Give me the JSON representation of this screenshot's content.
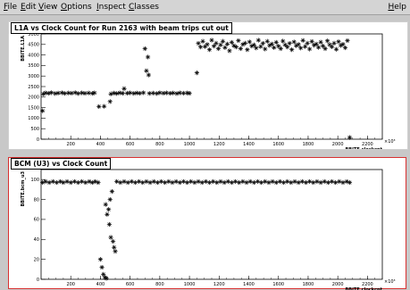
{
  "menubar": {
    "items": [
      {
        "label": "File",
        "ul": "F",
        "rest": "ile"
      },
      {
        "label": "Edit",
        "ul": "E",
        "rest": "dit"
      },
      {
        "label": "View",
        "ul": "V",
        "rest": "iew"
      },
      {
        "label": "Options",
        "ul": "O",
        "rest": "ptions"
      },
      {
        "label": "Inspect",
        "ul": "I",
        "rest": "nspect"
      },
      {
        "label": "Classes",
        "ul": "C",
        "rest": "lasses"
      }
    ],
    "help": {
      "label": "Help",
      "ul": "H",
      "rest": "elp"
    }
  },
  "chart_data": [
    {
      "type": "scatter",
      "title": "L1A vs Clock Count for Run 2163 with beam trips cut out",
      "xlabel": "BBITE.clockcnt",
      "ylabel": "BBITE.L1A",
      "x_multiplier": "×10³",
      "xlim": [
        0,
        2300
      ],
      "ylim": [
        0,
        5000
      ],
      "xticks": [
        200,
        400,
        600,
        800,
        1000,
        1200,
        1400,
        1600,
        1800,
        2000,
        2200
      ],
      "yticks": [
        0,
        500,
        1000,
        1500,
        2000,
        2500,
        3000,
        3500,
        4000,
        4500,
        5000
      ],
      "points": [
        [
          10,
          1350
        ],
        [
          15,
          2150
        ],
        [
          30,
          2200
        ],
        [
          50,
          2180
        ],
        [
          70,
          2210
        ],
        [
          95,
          2170
        ],
        [
          115,
          2190
        ],
        [
          140,
          2205
        ],
        [
          160,
          2175
        ],
        [
          185,
          2195
        ],
        [
          205,
          2185
        ],
        [
          230,
          2210
        ],
        [
          250,
          2170
        ],
        [
          275,
          2200
        ],
        [
          295,
          2180
        ],
        [
          320,
          2195
        ],
        [
          345,
          2175
        ],
        [
          360,
          2200
        ],
        [
          390,
          1550
        ],
        [
          425,
          1560
        ],
        [
          465,
          1790
        ],
        [
          470,
          2150
        ],
        [
          490,
          2190
        ],
        [
          510,
          2170
        ],
        [
          530,
          2200
        ],
        [
          550,
          2180
        ],
        [
          560,
          2400
        ],
        [
          580,
          2185
        ],
        [
          600,
          2200
        ],
        [
          625,
          2175
        ],
        [
          645,
          2195
        ],
        [
          665,
          2180
        ],
        [
          690,
          2205
        ],
        [
          700,
          4300
        ],
        [
          710,
          3250
        ],
        [
          720,
          3900
        ],
        [
          725,
          3050
        ],
        [
          730,
          2175
        ],
        [
          755,
          2190
        ],
        [
          780,
          2170
        ],
        [
          800,
          2205
        ],
        [
          825,
          2185
        ],
        [
          845,
          2200
        ],
        [
          870,
          2180
        ],
        [
          890,
          2195
        ],
        [
          915,
          2170
        ],
        [
          935,
          2200
        ],
        [
          960,
          2185
        ],
        [
          985,
          2195
        ],
        [
          1000,
          2180
        ],
        [
          1050,
          3150
        ],
        [
          1060,
          4550
        ],
        [
          1075,
          4380
        ],
        [
          1090,
          4650
        ],
        [
          1105,
          4400
        ],
        [
          1120,
          4500
        ],
        [
          1135,
          4250
        ],
        [
          1150,
          4700
        ],
        [
          1165,
          4420
        ],
        [
          1180,
          4560
        ],
        [
          1195,
          4300
        ],
        [
          1210,
          4480
        ],
        [
          1225,
          4650
        ],
        [
          1240,
          4350
        ],
        [
          1255,
          4520
        ],
        [
          1270,
          4200
        ],
        [
          1285,
          4600
        ],
        [
          1300,
          4440
        ],
        [
          1315,
          4380
        ],
        [
          1330,
          4680
        ],
        [
          1345,
          4300
        ],
        [
          1360,
          4500
        ],
        [
          1375,
          4560
        ],
        [
          1390,
          4250
        ],
        [
          1405,
          4620
        ],
        [
          1420,
          4420
        ],
        [
          1435,
          4480
        ],
        [
          1450,
          4330
        ],
        [
          1465,
          4700
        ],
        [
          1480,
          4400
        ],
        [
          1495,
          4550
        ],
        [
          1510,
          4280
        ],
        [
          1525,
          4650
        ],
        [
          1540,
          4450
        ],
        [
          1555,
          4520
        ],
        [
          1570,
          4350
        ],
        [
          1585,
          4600
        ],
        [
          1600,
          4420
        ],
        [
          1615,
          4300
        ],
        [
          1630,
          4660
        ],
        [
          1645,
          4480
        ],
        [
          1660,
          4380
        ],
        [
          1675,
          4550
        ],
        [
          1690,
          4250
        ],
        [
          1705,
          4620
        ],
        [
          1720,
          4440
        ],
        [
          1735,
          4500
        ],
        [
          1750,
          4330
        ],
        [
          1765,
          4690
        ],
        [
          1780,
          4400
        ],
        [
          1795,
          4560
        ],
        [
          1810,
          4280
        ],
        [
          1825,
          4640
        ],
        [
          1840,
          4460
        ],
        [
          1855,
          4520
        ],
        [
          1870,
          4360
        ],
        [
          1885,
          4610
        ],
        [
          1900,
          4430
        ],
        [
          1915,
          4300
        ],
        [
          1930,
          4670
        ],
        [
          1945,
          4490
        ],
        [
          1960,
          4390
        ],
        [
          1975,
          4560
        ],
        [
          1990,
          4270
        ],
        [
          2005,
          4630
        ],
        [
          2020,
          4450
        ],
        [
          2035,
          4510
        ],
        [
          2050,
          4340
        ],
        [
          2065,
          4680
        ],
        [
          2080,
          80
        ]
      ]
    },
    {
      "type": "scatter",
      "title": "BCM (U3) vs Clock Count",
      "xlabel": "BBITE.clockcnt",
      "ylabel": "BBITE.bcm_u3",
      "x_multiplier": "×10³",
      "xlim": [
        0,
        2300
      ],
      "ylim": [
        0,
        110
      ],
      "xticks": [
        200,
        400,
        600,
        800,
        1000,
        1200,
        1400,
        1600,
        1800,
        2000,
        2200
      ],
      "yticks": [
        0,
        20,
        40,
        60,
        80,
        100
      ],
      "points": [
        [
          10,
          97
        ],
        [
          30,
          98
        ],
        [
          55,
          97
        ],
        [
          80,
          98
        ],
        [
          105,
          97
        ],
        [
          130,
          98
        ],
        [
          150,
          97
        ],
        [
          175,
          98
        ],
        [
          200,
          97
        ],
        [
          225,
          98
        ],
        [
          250,
          97
        ],
        [
          275,
          98
        ],
        [
          300,
          97
        ],
        [
          325,
          98
        ],
        [
          345,
          97
        ],
        [
          365,
          98
        ],
        [
          385,
          97
        ],
        [
          400,
          20
        ],
        [
          410,
          12
        ],
        [
          420,
          5
        ],
        [
          430,
          2
        ],
        [
          435,
          75
        ],
        [
          440,
          1
        ],
        [
          445,
          65
        ],
        [
          455,
          70
        ],
        [
          460,
          55
        ],
        [
          465,
          80
        ],
        [
          470,
          42
        ],
        [
          478,
          88
        ],
        [
          485,
          38
        ],
        [
          492,
          32
        ],
        [
          500,
          28
        ],
        [
          510,
          98
        ],
        [
          535,
          97
        ],
        [
          560,
          98
        ],
        [
          585,
          97
        ],
        [
          610,
          98
        ],
        [
          635,
          97
        ],
        [
          660,
          98
        ],
        [
          685,
          97
        ],
        [
          710,
          98
        ],
        [
          735,
          97
        ],
        [
          760,
          98
        ],
        [
          785,
          97
        ],
        [
          810,
          98
        ],
        [
          835,
          97
        ],
        [
          860,
          98
        ],
        [
          885,
          97
        ],
        [
          910,
          98
        ],
        [
          935,
          97
        ],
        [
          960,
          98
        ],
        [
          985,
          97
        ],
        [
          1010,
          98
        ],
        [
          1035,
          97
        ],
        [
          1060,
          98
        ],
        [
          1085,
          97
        ],
        [
          1110,
          98
        ],
        [
          1135,
          97
        ],
        [
          1160,
          98
        ],
        [
          1185,
          97
        ],
        [
          1210,
          98
        ],
        [
          1235,
          97
        ],
        [
          1260,
          98
        ],
        [
          1285,
          97
        ],
        [
          1310,
          98
        ],
        [
          1335,
          97
        ],
        [
          1360,
          98
        ],
        [
          1385,
          97
        ],
        [
          1410,
          98
        ],
        [
          1435,
          97
        ],
        [
          1460,
          98
        ],
        [
          1485,
          97
        ],
        [
          1510,
          98
        ],
        [
          1535,
          97
        ],
        [
          1560,
          98
        ],
        [
          1585,
          97
        ],
        [
          1610,
          98
        ],
        [
          1635,
          97
        ],
        [
          1660,
          98
        ],
        [
          1685,
          97
        ],
        [
          1710,
          98
        ],
        [
          1735,
          97
        ],
        [
          1760,
          98
        ],
        [
          1785,
          97
        ],
        [
          1810,
          98
        ],
        [
          1835,
          97
        ],
        [
          1860,
          98
        ],
        [
          1885,
          97
        ],
        [
          1910,
          98
        ],
        [
          1935,
          97
        ],
        [
          1960,
          98
        ],
        [
          1985,
          97
        ],
        [
          2010,
          98
        ],
        [
          2035,
          97
        ],
        [
          2060,
          98
        ],
        [
          2080,
          97
        ]
      ]
    }
  ]
}
